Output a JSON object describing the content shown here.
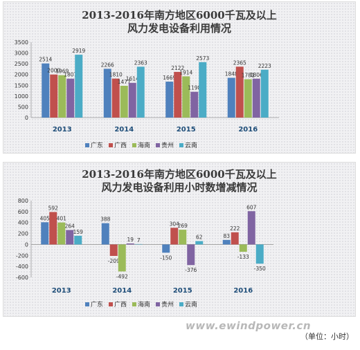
{
  "colors": {
    "guangdong": "#4f81bd",
    "guangxi": "#c0504d",
    "hainan": "#9bbb59",
    "guizhou": "#8064a2",
    "yunnan": "#4bacc6",
    "axis_year": "#1f4e79"
  },
  "watermark": "www.ewindpower.cn",
  "unit_note": "（单位：小时）",
  "chart_data": [
    {
      "type": "bar",
      "title": "2013-2016年南方地区6000千瓦及以上",
      "subtitle": "风力发电设备利用情况",
      "categories": [
        "2013",
        "2014",
        "2015",
        "2016"
      ],
      "ylim": [
        0,
        3500
      ],
      "yticks": [
        0,
        500,
        1000,
        1500,
        2000,
        2500,
        3000,
        3500
      ],
      "grid": false,
      "legend_position": "bottom",
      "series": [
        {
          "name": "广东",
          "values": [
            2514,
            2266,
            1669,
            1848
          ]
        },
        {
          "name": "广西",
          "values": [
            2000,
            1810,
            2122,
            2365
          ]
        },
        {
          "name": "海南",
          "values": [
            1969,
            1477,
            1914,
            1781
          ]
        },
        {
          "name": "贵州",
          "values": [
            1807,
            1614,
            1198,
            1806
          ]
        },
        {
          "name": "云南",
          "values": [
            2919,
            2363,
            2573,
            2223
          ]
        }
      ]
    },
    {
      "type": "bar",
      "title": "2013-2016年南方地区6000千瓦及以上",
      "subtitle": "风力发电设备利用小时数增减情况",
      "categories": [
        "2013",
        "2014",
        "2015",
        "2016"
      ],
      "ylim": [
        -600,
        800
      ],
      "yticks": [
        -600,
        -400,
        -200,
        0,
        200,
        400,
        600,
        800
      ],
      "grid": false,
      "legend_position": "bottom",
      "series": [
        {
          "name": "广东",
          "values": [
            405,
            388,
            -150,
            83
          ]
        },
        {
          "name": "广西",
          "values": [
            592,
            -209,
            304,
            222
          ]
        },
        {
          "name": "海南",
          "values": [
            401,
            -492,
            269,
            -133
          ]
        },
        {
          "name": "贵州",
          "values": [
            264,
            19,
            -376,
            607
          ]
        },
        {
          "name": "云南",
          "values": [
            159,
            7,
            62,
            -350
          ]
        }
      ]
    }
  ]
}
